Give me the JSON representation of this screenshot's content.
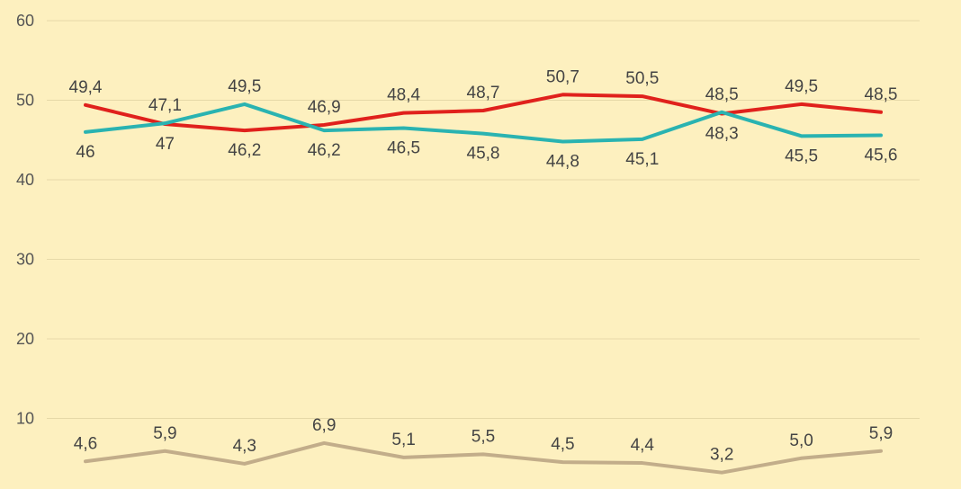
{
  "chart_data": {
    "type": "line",
    "title": "",
    "xlabel": "",
    "ylabel": "",
    "ylim": [
      0,
      60
    ],
    "yticks": [
      "10",
      "20",
      "30",
      "40",
      "50",
      "60"
    ],
    "grid": true,
    "legend": "none",
    "series": [
      {
        "color": "#e0211c",
        "values": [
          49.4,
          47.0,
          46.2,
          46.9,
          48.4,
          48.7,
          50.7,
          50.5,
          48.3,
          49.5,
          48.5
        ],
        "labels": [
          "49,4",
          "47",
          "46,2",
          "46,9",
          "48,4",
          "48,7",
          "50,7",
          "50,5",
          "48,3",
          "49,5",
          "48,5"
        ],
        "label_pos": [
          "above",
          "below",
          "below",
          "above",
          "above",
          "above",
          "above",
          "above",
          "below",
          "above",
          "above"
        ]
      },
      {
        "color": "#2ab3b1",
        "values": [
          46.0,
          47.1,
          49.5,
          46.2,
          46.5,
          45.8,
          44.8,
          45.1,
          48.5,
          45.5,
          45.6
        ],
        "labels": [
          "46",
          "47,1",
          "49,5",
          "46,2",
          "46,5",
          "45,8",
          "44,8",
          "45,1",
          "48,5",
          "45,5",
          "45,6"
        ],
        "label_pos": [
          "below",
          "above",
          "above",
          "below",
          "below",
          "below",
          "below",
          "below",
          "above",
          "below",
          "below"
        ]
      },
      {
        "color": "#c2ad8a",
        "values": [
          4.6,
          5.9,
          4.3,
          6.9,
          5.1,
          5.5,
          4.5,
          4.4,
          3.2,
          5.0,
          5.9
        ],
        "labels": [
          "4,6",
          "5,9",
          "4,3",
          "6,9",
          "5,1",
          "5,5",
          "4,5",
          "4,4",
          "3,2",
          "5,0",
          "5,9"
        ],
        "label_pos": [
          "above",
          "above",
          "above",
          "above",
          "above",
          "above",
          "above",
          "above",
          "above",
          "above",
          "above"
        ]
      }
    ]
  }
}
